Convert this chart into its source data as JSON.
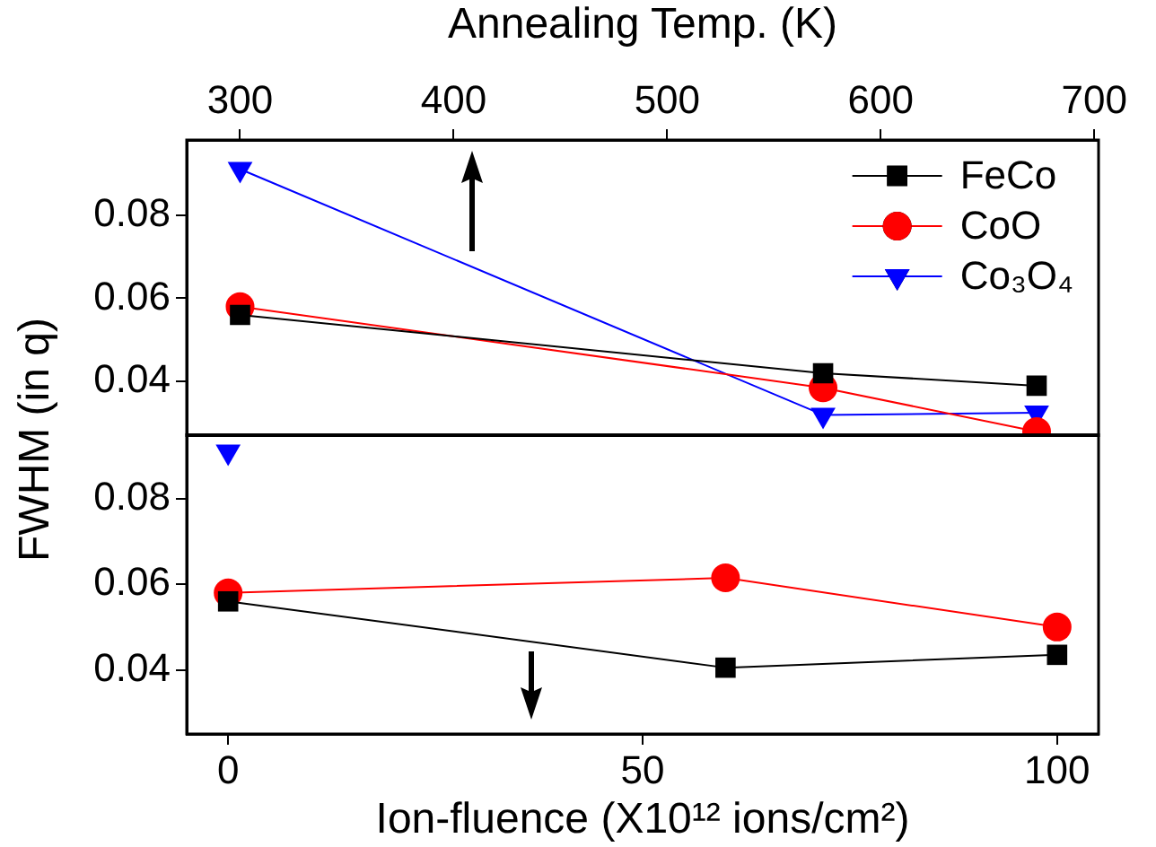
{
  "chart_data": [
    {
      "type": "line",
      "xlabel": "Annealing Temp. (K)",
      "ylabel": "FWHM (in q)",
      "xlim": [
        275,
        702
      ],
      "xticks": [
        300,
        400,
        500,
        600,
        700
      ],
      "ylim": [
        0.027,
        0.098
      ],
      "yticks": [
        0.04,
        0.06,
        0.08
      ],
      "grid": false,
      "legend": "top right",
      "series": [
        {
          "name": "FeCo",
          "color": "#000000",
          "marker": "square",
          "x": [
            300,
            573,
            673
          ],
          "values": [
            0.056,
            0.042,
            0.039
          ]
        },
        {
          "name": "CoO",
          "color": "#ff0000",
          "marker": "circle",
          "x": [
            300,
            573,
            673
          ],
          "values": [
            0.058,
            0.0385,
            0.028
          ]
        },
        {
          "name": "Co₃O₄",
          "color": "#0000ff",
          "marker": "triangle",
          "x": [
            300,
            573,
            673
          ],
          "values": [
            0.091,
            0.032,
            0.0325
          ]
        }
      ]
    },
    {
      "type": "line",
      "xlabel": "Ion-fluence (X10¹² ions/cm²)",
      "xlim": [
        -5,
        105
      ],
      "xticks": [
        0,
        50,
        100
      ],
      "ylim": [
        0.025,
        0.095
      ],
      "yticks": [
        0.04,
        0.06,
        0.08
      ],
      "grid": false,
      "series": [
        {
          "color": "#000000",
          "marker": "square",
          "x": [
            0,
            60,
            100
          ],
          "values": [
            0.056,
            0.0405,
            0.0435
          ]
        },
        {
          "color": "#ff0000",
          "marker": "circle",
          "x": [
            0,
            60,
            100
          ],
          "values": [
            0.058,
            0.0615,
            0.05
          ]
        },
        {
          "color": "#0000ff",
          "marker": "triangle",
          "x": [
            0
          ],
          "values": [
            0.091
          ]
        }
      ]
    }
  ]
}
